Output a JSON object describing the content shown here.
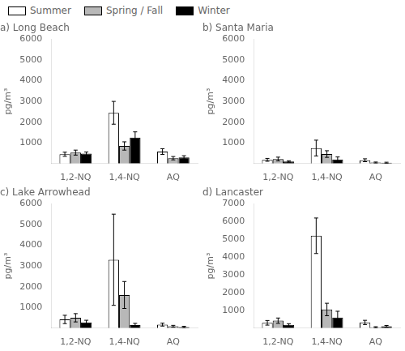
{
  "chart_data": [
    {
      "type": "bar",
      "title": "a) Long Beach",
      "categories": [
        "1,2-NQ",
        "1,4-NQ",
        "AQ"
      ],
      "series": [
        {
          "name": "Summer",
          "color": "white",
          "values": [
            450,
            2450,
            580
          ],
          "errors": [
            100,
            550,
            140
          ]
        },
        {
          "name": "Spring / Fall",
          "color": "#b8b8b8",
          "values": [
            530,
            850,
            260
          ],
          "errors": [
            120,
            200,
            80
          ]
        },
        {
          "name": "Winter",
          "color": "black",
          "values": [
            480,
            1250,
            300
          ],
          "errors": [
            80,
            280,
            80
          ]
        }
      ],
      "ylabel": "pg/m³",
      "ylim": [
        0,
        6000
      ],
      "yticks": [
        {
          "value": 0,
          "label": null
        },
        1000,
        2000,
        3000,
        4000,
        5000,
        6000
      ],
      "grid": false,
      "legend": "upper left"
    },
    {
      "type": "bar",
      "title": "b) Santa Maria",
      "categories": [
        "1,2-NQ",
        "1,4-NQ",
        "AQ"
      ],
      "series": [
        {
          "name": "Summer",
          "color": "white",
          "values": [
            180,
            750,
            160
          ],
          "errors": [
            70,
            380,
            70
          ]
        },
        {
          "name": "Spring / Fall",
          "color": "#b8b8b8",
          "values": [
            220,
            460,
            50
          ],
          "errors": [
            90,
            160,
            25
          ]
        },
        {
          "name": "Winter",
          "color": "black",
          "values": [
            100,
            200,
            40
          ],
          "errors": [
            35,
            120,
            25
          ]
        }
      ],
      "ylabel": "pg/m³",
      "ylim": [
        0,
        6000
      ],
      "yticks": [
        {
          "value": 0,
          "label": null
        },
        1000,
        2000,
        3000,
        4000,
        5000,
        6000
      ],
      "grid": false
    },
    {
      "type": "bar",
      "title": "c) Lake Arrowhead",
      "categories": [
        "1,2-NQ",
        "1,4-NQ",
        "AQ"
      ],
      "series": [
        {
          "name": "Summer",
          "color": "white",
          "values": [
            420,
            3300,
            170
          ],
          "errors": [
            200,
            2200,
            70
          ]
        },
        {
          "name": "Spring / Fall",
          "color": "#b8b8b8",
          "values": [
            500,
            1600,
            90
          ],
          "errors": [
            200,
            650,
            45
          ]
        },
        {
          "name": "Winter",
          "color": "black",
          "values": [
            280,
            150,
            55
          ],
          "errors": [
            100,
            80,
            35
          ]
        }
      ],
      "ylabel": "pg/m³",
      "ylim": [
        0,
        6000
      ],
      "yticks": [
        {
          "value": 0,
          "label": null
        },
        1000,
        2000,
        3000,
        4000,
        5000,
        6000
      ],
      "grid": false
    },
    {
      "type": "bar",
      "title": "d) Lancaster",
      "categories": [
        "1,2-NQ",
        "1,4-NQ",
        "AQ"
      ],
      "series": [
        {
          "name": "Summer",
          "color": "white",
          "values": [
            300,
            5200,
            320
          ],
          "errors": [
            130,
            1000,
            120
          ]
        },
        {
          "name": "Spring / Fall",
          "color": "#b8b8b8",
          "values": [
            420,
            1050,
            50
          ],
          "errors": [
            150,
            350,
            30
          ]
        },
        {
          "name": "Winter",
          "color": "black",
          "values": [
            180,
            600,
            100
          ],
          "errors": [
            70,
            350,
            50
          ]
        }
      ],
      "ylabel": "pg/m³",
      "ylim": [
        0,
        7000
      ],
      "yticks": [
        {
          "value": 0,
          "label": null
        },
        1000,
        2000,
        3000,
        4000,
        5000,
        6000,
        7000
      ],
      "grid": false
    }
  ]
}
